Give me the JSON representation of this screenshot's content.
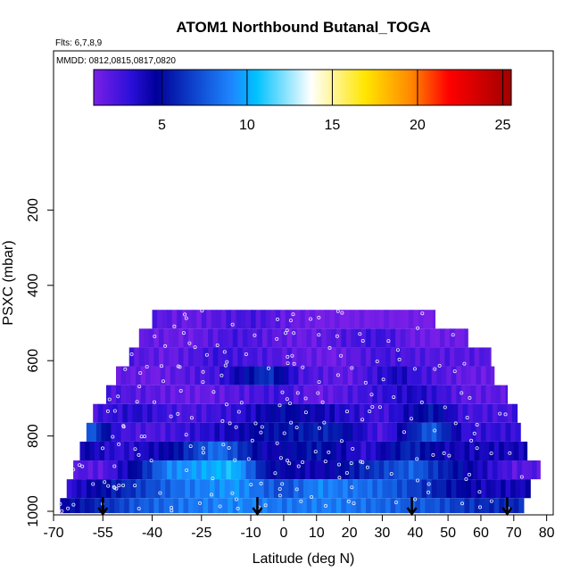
{
  "chart_data": {
    "type": "heatmap",
    "title": "ATOM1 Northbound Butanal_TOGA",
    "annotations": [
      "Flts: 6,7,8,9",
      "MMDD: 0812,0815,0817,0820"
    ],
    "xlabel": "Latitude (deg N)",
    "ylabel": "PSXC (mbar)",
    "xlim": [
      -70,
      82
    ],
    "ylim": [
      1000,
      0
    ],
    "x_ticks": [
      "-70",
      "-55",
      "-40",
      "-25",
      "-10",
      "0",
      "10",
      "20",
      "30",
      "40",
      "50",
      "60",
      "70",
      "80"
    ],
    "x_tick_values": [
      -70,
      -55,
      -40,
      -25,
      -10,
      0,
      10,
      20,
      30,
      40,
      50,
      60,
      70,
      80
    ],
    "y_ticks": [
      "200",
      "400",
      "600",
      "800",
      "1000"
    ],
    "y_tick_values": [
      200,
      400,
      600,
      800,
      1000
    ],
    "colorbar": {
      "range": [
        1,
        25.5
      ],
      "ticks": [
        "5",
        "10",
        "15",
        "20",
        "25"
      ],
      "tick_values": [
        5,
        10,
        15,
        20,
        25
      ]
    },
    "rows": [
      {
        "p_top": 465,
        "p_bot": 515,
        "lat_min": -40,
        "lat_max": 46,
        "segments": [
          [
            -40,
            2
          ],
          [
            -28,
            1.5
          ],
          [
            -10,
            2.5
          ],
          [
            10,
            1.0
          ],
          [
            46,
            1.0
          ]
        ]
      },
      {
        "p_top": 515,
        "p_bot": 565,
        "lat_min": -44,
        "lat_max": 56,
        "segments": [
          [
            -44,
            1.8
          ],
          [
            -30,
            1.3
          ],
          [
            -15,
            2.5
          ],
          [
            5,
            1.4
          ],
          [
            30,
            2.8
          ],
          [
            40,
            1.3
          ],
          [
            56,
            1.3
          ]
        ]
      },
      {
        "p_top": 565,
        "p_bot": 615,
        "lat_min": -47,
        "lat_max": 63,
        "segments": [
          [
            -47,
            2.2
          ],
          [
            -35,
            1.5
          ],
          [
            -20,
            2.8
          ],
          [
            0,
            2.0
          ],
          [
            15,
            1.2
          ],
          [
            30,
            2.6
          ],
          [
            45,
            2.0
          ],
          [
            63,
            2.0
          ]
        ]
      },
      {
        "p_top": 615,
        "p_bot": 665,
        "lat_min": -51,
        "lat_max": 64,
        "segments": [
          [
            -51,
            1.8
          ],
          [
            -40,
            1.3
          ],
          [
            -20,
            2.6
          ],
          [
            -5,
            6.5
          ],
          [
            5,
            2.4
          ],
          [
            20,
            1.6
          ],
          [
            35,
            4.0
          ],
          [
            40,
            2.8
          ],
          [
            55,
            1.5
          ],
          [
            64,
            1.5
          ]
        ]
      },
      {
        "p_top": 665,
        "p_bot": 715,
        "lat_min": -54,
        "lat_max": 68,
        "segments": [
          [
            -54,
            2.4
          ],
          [
            -40,
            1.8
          ],
          [
            -25,
            1.4
          ],
          [
            -15,
            2.0
          ],
          [
            0,
            2.8
          ],
          [
            10,
            1.4
          ],
          [
            25,
            2.6
          ],
          [
            40,
            3.8
          ],
          [
            55,
            1.8
          ],
          [
            68,
            1.8
          ]
        ]
      },
      {
        "p_top": 715,
        "p_bot": 765,
        "lat_min": -58,
        "lat_max": 71,
        "segments": [
          [
            -58,
            2.5
          ],
          [
            -45,
            3.5
          ],
          [
            -30,
            2.2
          ],
          [
            -15,
            3.0
          ],
          [
            0,
            5.0
          ],
          [
            15,
            3.8
          ],
          [
            30,
            2.5
          ],
          [
            45,
            5.5
          ],
          [
            55,
            2.5
          ],
          [
            71,
            2.5
          ]
        ]
      },
      {
        "p_top": 765,
        "p_bot": 815,
        "lat_min": -60,
        "lat_max": 72,
        "segments": [
          [
            -60,
            8.5
          ],
          [
            -50,
            2.6
          ],
          [
            -40,
            2.2
          ],
          [
            -25,
            3.2
          ],
          [
            -5,
            5.0
          ],
          [
            15,
            5.8
          ],
          [
            30,
            2.0
          ],
          [
            45,
            8.0
          ],
          [
            55,
            3.0
          ],
          [
            72,
            3.0
          ]
        ]
      },
      {
        "p_top": 815,
        "p_bot": 865,
        "lat_min": -62,
        "lat_max": 74,
        "segments": [
          [
            -62,
            4.5
          ],
          [
            -50,
            3.0
          ],
          [
            -35,
            4.5
          ],
          [
            -20,
            8.5
          ],
          [
            -5,
            4.0
          ],
          [
            10,
            5.5
          ],
          [
            25,
            3.0
          ],
          [
            38,
            6.0
          ],
          [
            50,
            4.0
          ],
          [
            74,
            4.0
          ]
        ]
      },
      {
        "p_top": 865,
        "p_bot": 915,
        "lat_min": -64,
        "lat_max": 78,
        "segments": [
          [
            -64,
            2.2
          ],
          [
            -55,
            1.8
          ],
          [
            -45,
            5.0
          ],
          [
            -35,
            9.0
          ],
          [
            -15,
            10.5
          ],
          [
            -5,
            5.0
          ],
          [
            10,
            4.0
          ],
          [
            25,
            6.0
          ],
          [
            40,
            8.0
          ],
          [
            45,
            6.5
          ],
          [
            70,
            2.0
          ],
          [
            78,
            2.0
          ]
        ]
      },
      {
        "p_top": 915,
        "p_bot": 965,
        "lat_min": -66,
        "lat_max": 75,
        "segments": [
          [
            -66,
            3.0
          ],
          [
            -55,
            5.0
          ],
          [
            -45,
            6.5
          ],
          [
            -30,
            8.5
          ],
          [
            -15,
            9.5
          ],
          [
            0,
            7.0
          ],
          [
            10,
            9.0
          ],
          [
            30,
            8.0
          ],
          [
            45,
            6.0
          ],
          [
            60,
            4.0
          ],
          [
            75,
            4.0
          ]
        ]
      },
      {
        "p_top": 965,
        "p_bot": 1005,
        "lat_min": -68,
        "lat_max": 73,
        "segments": [
          [
            -68,
            4.5
          ],
          [
            -55,
            6.0
          ],
          [
            -45,
            7.5
          ],
          [
            -30,
            8.5
          ],
          [
            -15,
            9.0
          ],
          [
            0,
            8.5
          ],
          [
            15,
            8.8
          ],
          [
            30,
            8.0
          ],
          [
            45,
            7.5
          ],
          [
            60,
            6.0
          ],
          [
            73,
            6.0
          ]
        ]
      }
    ],
    "markers_lat": [
      -55,
      -8,
      39,
      68
    ]
  }
}
